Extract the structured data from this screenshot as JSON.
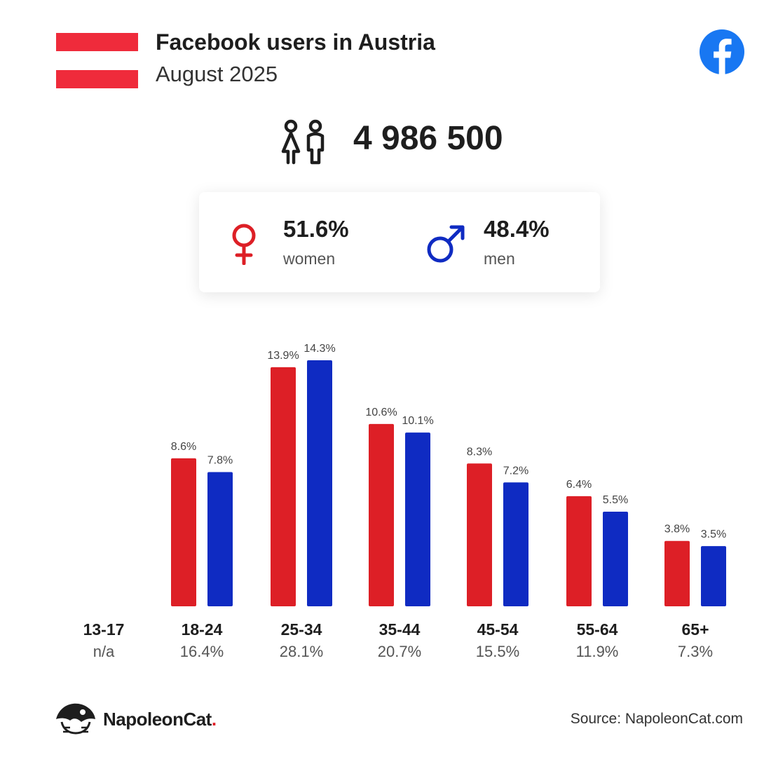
{
  "header": {
    "title": "Facebook users in Austria",
    "subtitle": "August 2025",
    "flag_colors": [
      "#ef2b3b",
      "#ffffff",
      "#ef2b3b"
    ],
    "brand_icon": "facebook-icon"
  },
  "total": {
    "value": "4 986 500",
    "icon": "people-icon"
  },
  "gender": {
    "women": {
      "percent": "51.6%",
      "label": "women",
      "icon": "female-symbol-icon",
      "color": "#dd1f26"
    },
    "men": {
      "percent": "48.4%",
      "label": "men",
      "icon": "male-symbol-icon",
      "color": "#0f2bc2"
    }
  },
  "chart_data": {
    "type": "bar",
    "categories": [
      "13-17",
      "18-24",
      "25-34",
      "35-44",
      "45-54",
      "55-64",
      "65+"
    ],
    "category_totals": [
      "n/a",
      "16.4%",
      "28.1%",
      "20.7%",
      "15.5%",
      "11.9%",
      "7.3%"
    ],
    "series": [
      {
        "values": [
          null,
          8.6,
          13.9,
          10.6,
          8.3,
          6.4,
          3.8
        ],
        "labels": [
          "",
          "8.6%",
          "13.9%",
          "10.6%",
          "8.3%",
          "6.4%",
          "3.8%"
        ],
        "color": "#dd1f26"
      },
      {
        "values": [
          null,
          7.8,
          14.3,
          10.1,
          7.2,
          5.5,
          3.5
        ],
        "labels": [
          "",
          "7.8%",
          "14.3%",
          "10.1%",
          "7.2%",
          "5.5%",
          "3.5%"
        ],
        "color": "#0f2bc2"
      }
    ],
    "ylim": [
      0,
      14.3
    ],
    "grid": false
  },
  "footer": {
    "brand_name": "NapoleonCat",
    "brand_suffix": ".",
    "source": "Source: NapoleonCat.com"
  }
}
